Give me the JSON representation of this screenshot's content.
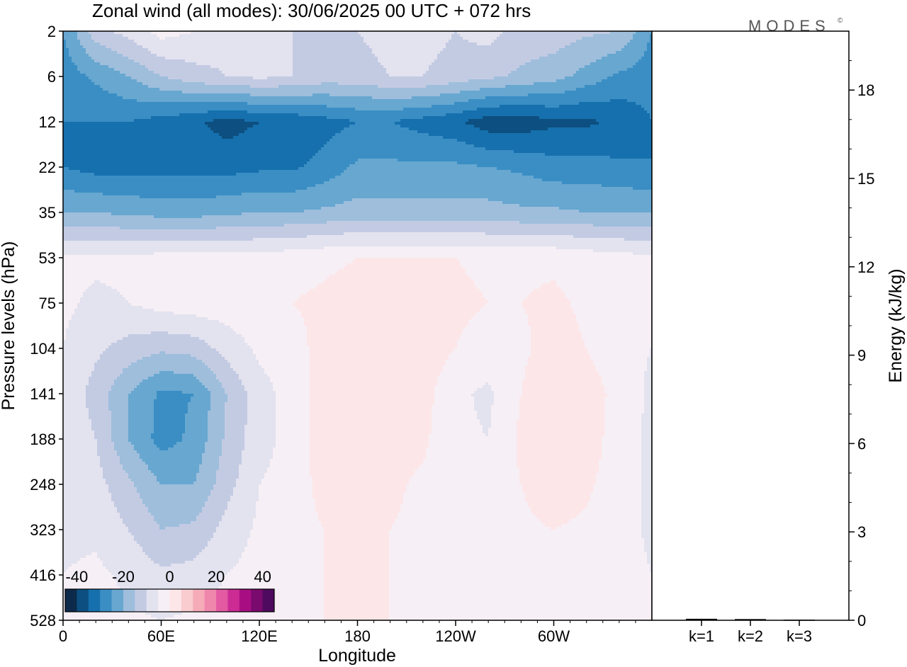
{
  "chart_data": [
    {
      "type": "heatmap",
      "title": "Zonal wind (all modes):  30/06/2025  00 UTC  + 072 hrs",
      "xlabel": "Longitude",
      "ylabel": "Pressure levels (hPa)",
      "x_ticks": [
        "0",
        "60E",
        "120E",
        "180",
        "120W",
        "60W"
      ],
      "y_ticks": [
        "2",
        "6",
        "12",
        "22",
        "35",
        "53",
        "75",
        "104",
        "141",
        "188",
        "248",
        "323",
        "416",
        "528"
      ],
      "colorbar": {
        "ticks": [
          "-40",
          "-20",
          "0",
          "20",
          "40"
        ],
        "range": [
          -45,
          45
        ],
        "colors": [
          "#0d2a4a",
          "#0d4f80",
          "#1670ad",
          "#3a8ec4",
          "#67a7d0",
          "#9ebedc",
          "#c3cbe3",
          "#e3e2ef",
          "#f6eff5",
          "#fde6e8",
          "#f9cccf",
          "#f5abb8",
          "#ef87ad",
          "#e35aa3",
          "#cc2b94",
          "#a80e82",
          "#7b0a6e",
          "#4e0a5e"
        ]
      },
      "field": {
        "lon": [
          0,
          20,
          40,
          60,
          80,
          100,
          120,
          140,
          160,
          180,
          200,
          220,
          240,
          260,
          280,
          300,
          320,
          340,
          360
        ],
        "levels": [
          2,
          6,
          12,
          22,
          35,
          53,
          75,
          104,
          141,
          188,
          248,
          323,
          416,
          528
        ],
        "u": [
          [
            -25,
            -12,
            -8,
            -3,
            -5,
            -8,
            -10,
            -10,
            -12,
            -10,
            -8,
            -8,
            -10,
            -8,
            -12,
            -12,
            -14,
            -15,
            -25
          ],
          [
            -28,
            -24,
            -20,
            -15,
            -12,
            -10,
            -9,
            -10,
            -12,
            -12,
            -10,
            -10,
            -12,
            -14,
            -16,
            -18,
            -22,
            -26,
            -28
          ],
          [
            -30,
            -30,
            -30,
            -32,
            -34,
            -37,
            -35,
            -34,
            -32,
            -30,
            -30,
            -32,
            -34,
            -38,
            -38,
            -36,
            -36,
            -34,
            -30
          ],
          [
            -30,
            -32,
            -32,
            -32,
            -32,
            -32,
            -31,
            -31,
            -28,
            -24,
            -24,
            -24,
            -24,
            -25,
            -26,
            -28,
            -28,
            -29,
            -30
          ],
          [
            -20,
            -20,
            -21,
            -22,
            -22,
            -21,
            -20,
            -20,
            -19,
            -18,
            -18,
            -18,
            -18,
            -18,
            -19,
            -19,
            -20,
            -20,
            -20
          ],
          [
            -4,
            -4,
            -4,
            -3,
            -3,
            -3,
            -3,
            -2,
            -1,
            0,
            0,
            0,
            0,
            -1,
            -1,
            -1,
            -2,
            -3,
            -4
          ],
          [
            -4,
            -6,
            -5,
            -3,
            -2,
            -2,
            -1,
            0,
            1,
            2,
            2,
            2,
            1,
            0,
            0,
            1,
            -1,
            -5,
            -4
          ],
          [
            -5,
            -9,
            -12,
            -14,
            -13,
            -8,
            -4,
            -2,
            2,
            4,
            4,
            3,
            0,
            -2,
            -1,
            2,
            0,
            -4,
            -5
          ],
          [
            -6,
            -12,
            -20,
            -26,
            -25,
            -15,
            -7,
            -3,
            3,
            5,
            4,
            2,
            -4,
            -6,
            0,
            5,
            3,
            -2,
            -6
          ],
          [
            -6,
            -10,
            -20,
            -27,
            -24,
            -14,
            -7,
            -3,
            3,
            5,
            3,
            1,
            -4,
            -5,
            1,
            5,
            3,
            -3,
            -6
          ],
          [
            -6,
            -8,
            -14,
            -20,
            -20,
            -12,
            -5,
            -3,
            2,
            3,
            1,
            -1,
            -3,
            -3,
            0,
            3,
            1,
            -3,
            -6
          ],
          [
            -6,
            -6,
            -10,
            -15,
            -14,
            -8,
            -4,
            -2,
            0,
            1,
            0,
            -1,
            -2,
            -2,
            -1,
            0,
            -1,
            -3,
            -6
          ],
          [
            -5,
            -4,
            -6,
            -9,
            -8,
            -5,
            -3,
            -1,
            0,
            1,
            0,
            -1,
            -2,
            -3,
            -3,
            -2,
            -2,
            -3,
            -5
          ],
          [
            -4,
            -3,
            -4,
            -5,
            -4,
            -3,
            -2,
            -1,
            0,
            0,
            0,
            -1,
            -2,
            -3,
            -3,
            -2,
            -2,
            -3,
            -4
          ]
        ]
      }
    },
    {
      "type": "bar",
      "categories": [
        "k=1",
        "k=2",
        "k=3"
      ],
      "values": [
        0.05,
        0.04,
        0.02
      ],
      "ylabel": "Energy (kJ/kg)",
      "ylim": [
        0,
        20
      ],
      "y_ticks": [
        "0",
        "3",
        "6",
        "9",
        "12",
        "15",
        "18"
      ]
    }
  ],
  "logo": {
    "text": "MODES",
    "mark": "©"
  }
}
